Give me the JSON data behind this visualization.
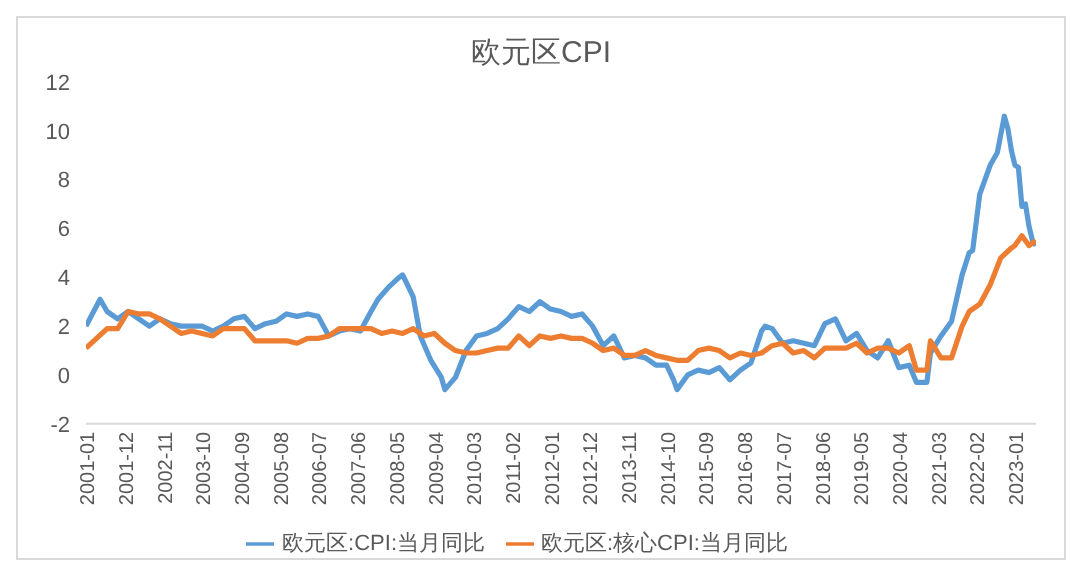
{
  "chart_data": {
    "type": "line",
    "title": "欧元区CPI",
    "legend": "bottom",
    "grid": false,
    "xlim": [
      "2001-01",
      "2023-07"
    ],
    "xticks": [
      "2001-01",
      "2001-12",
      "2002-11",
      "2003-10",
      "2004-09",
      "2005-08",
      "2006-07",
      "2007-06",
      "2008-05",
      "2009-04",
      "2010-03",
      "2011-02",
      "2012-01",
      "2012-12",
      "2013-11",
      "2014-10",
      "2015-09",
      "2016-08",
      "2017-07",
      "2018-06",
      "2019-05",
      "2020-04",
      "2021-03",
      "2022-02",
      "2023-01"
    ],
    "ylim": [
      -2,
      12
    ],
    "yticks": [
      -2,
      0,
      2,
      4,
      6,
      8,
      10,
      12
    ],
    "series": [
      {
        "name": "欧元区:CPI:当月同比",
        "color": "#5b9bd5",
        "x": [
          "2001-01",
          "2001-05",
          "2001-07",
          "2001-10",
          "2002-01",
          "2002-04",
          "2002-07",
          "2002-10",
          "2003-01",
          "2003-04",
          "2003-07",
          "2003-10",
          "2004-01",
          "2004-04",
          "2004-07",
          "2004-10",
          "2005-01",
          "2005-04",
          "2005-07",
          "2005-10",
          "2006-01",
          "2006-04",
          "2006-07",
          "2006-10",
          "2007-01",
          "2007-04",
          "2007-07",
          "2007-10",
          "2007-12",
          "2008-03",
          "2008-06",
          "2008-07",
          "2008-10",
          "2008-12",
          "2009-03",
          "2009-06",
          "2009-07",
          "2009-10",
          "2010-01",
          "2010-04",
          "2010-07",
          "2010-10",
          "2011-01",
          "2011-04",
          "2011-07",
          "2011-10",
          "2012-01",
          "2012-04",
          "2012-07",
          "2012-10",
          "2013-01",
          "2013-04",
          "2013-07",
          "2013-10",
          "2014-01",
          "2014-04",
          "2014-07",
          "2014-10",
          "2014-12",
          "2015-01",
          "2015-04",
          "2015-07",
          "2015-10",
          "2016-01",
          "2016-04",
          "2016-07",
          "2016-10",
          "2017-01",
          "2017-02",
          "2017-04",
          "2017-07",
          "2017-10",
          "2018-01",
          "2018-04",
          "2018-07",
          "2018-10",
          "2019-01",
          "2019-04",
          "2019-07",
          "2019-10",
          "2020-01",
          "2020-04",
          "2020-07",
          "2020-09",
          "2020-12",
          "2021-01",
          "2021-04",
          "2021-07",
          "2021-10",
          "2021-12",
          "2022-01",
          "2022-03",
          "2022-06",
          "2022-08",
          "2022-10",
          "2022-11",
          "2022-12",
          "2023-01",
          "2023-02",
          "2023-03",
          "2023-04",
          "2023-05",
          "2023-06",
          "2023-07"
        ],
        "values": [
          2.0,
          3.1,
          2.6,
          2.3,
          2.6,
          2.3,
          2.0,
          2.3,
          2.1,
          2.0,
          2.0,
          2.0,
          1.8,
          2.0,
          2.3,
          2.4,
          1.9,
          2.1,
          2.2,
          2.5,
          2.4,
          2.5,
          2.4,
          1.6,
          1.8,
          1.9,
          1.8,
          2.6,
          3.1,
          3.6,
          4.0,
          4.1,
          3.2,
          1.6,
          0.6,
          -0.1,
          -0.6,
          -0.1,
          1.0,
          1.6,
          1.7,
          1.9,
          2.3,
          2.8,
          2.6,
          3.0,
          2.7,
          2.6,
          2.4,
          2.5,
          2.0,
          1.2,
          1.6,
          0.7,
          0.8,
          0.7,
          0.4,
          0.4,
          -0.2,
          -0.6,
          0.0,
          0.2,
          0.1,
          0.3,
          -0.2,
          0.2,
          0.5,
          1.8,
          2.0,
          1.9,
          1.3,
          1.4,
          1.3,
          1.2,
          2.1,
          2.3,
          1.4,
          1.7,
          1.0,
          0.7,
          1.4,
          0.3,
          0.4,
          -0.3,
          -0.3,
          0.9,
          1.6,
          2.2,
          4.1,
          5.0,
          5.1,
          7.4,
          8.6,
          9.1,
          10.6,
          10.1,
          9.2,
          8.6,
          8.5,
          6.9,
          7.0,
          6.1,
          5.5,
          5.3
        ]
      },
      {
        "name": "欧元区:核心CPI:当月同比",
        "color": "#ed7d31",
        "x": [
          "2001-01",
          "2001-04",
          "2001-07",
          "2001-10",
          "2002-01",
          "2002-04",
          "2002-07",
          "2002-10",
          "2003-01",
          "2003-04",
          "2003-07",
          "2003-10",
          "2004-01",
          "2004-04",
          "2004-07",
          "2004-10",
          "2005-01",
          "2005-04",
          "2005-07",
          "2005-10",
          "2006-01",
          "2006-04",
          "2006-07",
          "2006-10",
          "2007-01",
          "2007-04",
          "2007-07",
          "2007-10",
          "2008-01",
          "2008-04",
          "2008-07",
          "2008-10",
          "2009-01",
          "2009-04",
          "2009-07",
          "2009-10",
          "2010-01",
          "2010-04",
          "2010-07",
          "2010-10",
          "2011-01",
          "2011-04",
          "2011-07",
          "2011-10",
          "2012-01",
          "2012-04",
          "2012-07",
          "2012-10",
          "2013-01",
          "2013-04",
          "2013-07",
          "2013-10",
          "2014-01",
          "2014-04",
          "2014-07",
          "2014-10",
          "2015-01",
          "2015-04",
          "2015-07",
          "2015-10",
          "2016-01",
          "2016-04",
          "2016-07",
          "2016-10",
          "2017-01",
          "2017-04",
          "2017-07",
          "2017-10",
          "2018-01",
          "2018-04",
          "2018-07",
          "2018-10",
          "2019-01",
          "2019-04",
          "2019-07",
          "2019-10",
          "2020-01",
          "2020-04",
          "2020-07",
          "2020-09",
          "2020-12",
          "2021-01",
          "2021-04",
          "2021-07",
          "2021-10",
          "2021-12",
          "2022-03",
          "2022-06",
          "2022-09",
          "2022-12",
          "2023-01",
          "2023-03",
          "2023-05",
          "2023-07"
        ],
        "values": [
          1.1,
          1.5,
          1.9,
          1.9,
          2.6,
          2.5,
          2.5,
          2.3,
          2.0,
          1.7,
          1.8,
          1.7,
          1.6,
          1.9,
          1.9,
          1.9,
          1.4,
          1.4,
          1.4,
          1.4,
          1.3,
          1.5,
          1.5,
          1.6,
          1.9,
          1.9,
          1.9,
          1.9,
          1.7,
          1.8,
          1.7,
          1.9,
          1.6,
          1.7,
          1.3,
          1.0,
          0.9,
          0.9,
          1.0,
          1.1,
          1.1,
          1.6,
          1.2,
          1.6,
          1.5,
          1.6,
          1.5,
          1.5,
          1.3,
          1.0,
          1.1,
          0.8,
          0.8,
          1.0,
          0.8,
          0.7,
          0.6,
          0.6,
          1.0,
          1.1,
          1.0,
          0.7,
          0.9,
          0.8,
          0.9,
          1.2,
          1.3,
          0.9,
          1.0,
          0.7,
          1.1,
          1.1,
          1.1,
          1.3,
          0.9,
          1.1,
          1.1,
          0.9,
          1.2,
          0.2,
          0.2,
          1.4,
          0.7,
          0.7,
          2.0,
          2.6,
          2.9,
          3.7,
          4.8,
          5.2,
          5.3,
          5.7,
          5.3,
          5.5
        ]
      }
    ]
  }
}
